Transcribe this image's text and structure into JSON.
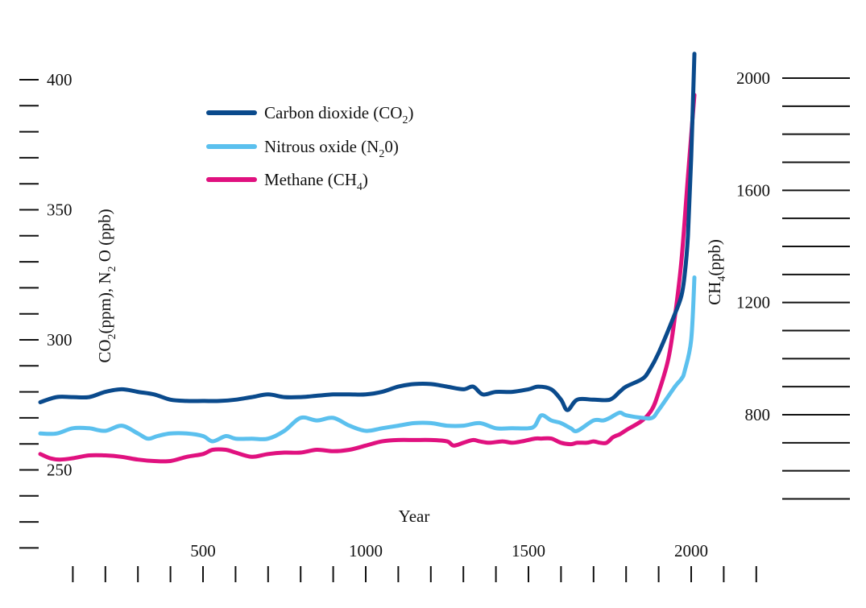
{
  "chart_data": {
    "type": "line",
    "title": "",
    "xlabel": "Year",
    "ylabel_left": {
      "main": "CO",
      "sub1": "2",
      "mid": "(ppm), N",
      "sub2": "2",
      "end": " O (ppb)"
    },
    "ylabel_right": {
      "main": "CH",
      "sub": "4",
      "end": "(ppb)"
    },
    "xlim": [
      0,
      2250
    ],
    "ylim_left": [
      220,
      425
    ],
    "ylim_right": [
      400,
      2200
    ],
    "x_ticks": [
      500,
      1000,
      1500,
      2000
    ],
    "x_tick_labels": [
      "500",
      "1000",
      "1500",
      "2000"
    ],
    "y_left_ticks": [
      250,
      300,
      350,
      400
    ],
    "y_left_tick_labels": [
      "250",
      "300",
      "350",
      "400"
    ],
    "y_right_ticks": [
      800,
      1200,
      1600,
      2000
    ],
    "y_right_tick_labels": [
      "800",
      "1200",
      "1600",
      "2000"
    ],
    "grid": false,
    "legend_position": "top-left",
    "series": [
      {
        "name": "Carbon dioxide (CO",
        "name_sub": "2",
        "name_end": ")",
        "axis": "left",
        "color": "#0a4a8c",
        "x": [
          0,
          50,
          100,
          150,
          200,
          250,
          300,
          350,
          400,
          450,
          500,
          550,
          600,
          650,
          700,
          750,
          800,
          850,
          900,
          950,
          1000,
          1050,
          1100,
          1150,
          1200,
          1250,
          1300,
          1330,
          1360,
          1400,
          1450,
          1500,
          1530,
          1570,
          1600,
          1620,
          1650,
          1700,
          1750,
          1780,
          1800,
          1850,
          1870,
          1900,
          1950,
          1970,
          1980,
          1990,
          2000,
          2010
        ],
        "values": [
          276,
          278,
          278,
          278,
          280,
          281,
          280,
          279,
          277,
          276.5,
          276.5,
          276.5,
          277,
          278,
          279,
          278,
          278,
          278.5,
          279,
          279,
          279,
          280,
          282,
          283,
          283,
          282,
          281,
          282,
          279,
          280,
          280,
          281,
          282,
          281,
          277,
          273,
          277,
          277,
          277,
          280,
          282,
          285,
          288,
          295,
          310,
          317,
          325,
          340,
          370,
          410
        ]
      },
      {
        "name": "Nitrous oxide (N",
        "name_sub": "2",
        "name_end": "0)",
        "axis": "left",
        "color": "#5bc0ee",
        "x": [
          0,
          50,
          100,
          150,
          200,
          250,
          300,
          330,
          360,
          400,
          450,
          500,
          530,
          570,
          600,
          650,
          700,
          750,
          800,
          850,
          900,
          950,
          1000,
          1050,
          1100,
          1150,
          1200,
          1250,
          1300,
          1350,
          1400,
          1450,
          1500,
          1520,
          1540,
          1570,
          1600,
          1630,
          1650,
          1700,
          1730,
          1750,
          1780,
          1800,
          1850,
          1880,
          1900,
          1950,
          1970,
          1980,
          2000,
          2010
        ],
        "values": [
          264,
          264,
          266,
          266,
          265,
          267,
          264,
          262,
          263,
          264,
          264,
          263,
          261,
          263,
          262,
          262,
          262,
          265,
          270,
          269,
          270,
          267,
          265,
          266,
          267,
          268,
          268,
          267,
          267,
          268,
          266,
          266,
          266,
          267,
          271,
          269,
          268,
          266,
          265,
          269,
          269,
          270,
          272,
          271,
          270,
          270,
          273,
          282,
          285,
          288,
          300,
          324
        ]
      },
      {
        "name": "Methane (CH",
        "name_sub": "4",
        "name_end": ")",
        "axis": "right",
        "color": "#e0117f",
        "x": [
          0,
          30,
          60,
          100,
          150,
          200,
          250,
          300,
          350,
          400,
          450,
          500,
          530,
          570,
          600,
          650,
          700,
          750,
          800,
          850,
          900,
          950,
          1000,
          1050,
          1100,
          1150,
          1200,
          1250,
          1270,
          1300,
          1330,
          1350,
          1380,
          1420,
          1450,
          1480,
          1520,
          1540,
          1570,
          1600,
          1630,
          1650,
          1680,
          1700,
          1720,
          1740,
          1760,
          1780,
          1800,
          1850,
          1880,
          1900,
          1930,
          1950,
          1970,
          1990,
          2010
        ],
        "values": [
          660,
          645,
          640,
          645,
          655,
          655,
          650,
          640,
          635,
          635,
          650,
          660,
          675,
          675,
          665,
          650,
          660,
          665,
          665,
          675,
          670,
          675,
          690,
          705,
          710,
          710,
          710,
          705,
          690,
          700,
          710,
          705,
          700,
          705,
          700,
          705,
          715,
          715,
          715,
          700,
          695,
          700,
          700,
          705,
          700,
          700,
          720,
          730,
          745,
          780,
          820,
          880,
          1000,
          1150,
          1350,
          1650,
          1940
        ]
      }
    ]
  }
}
